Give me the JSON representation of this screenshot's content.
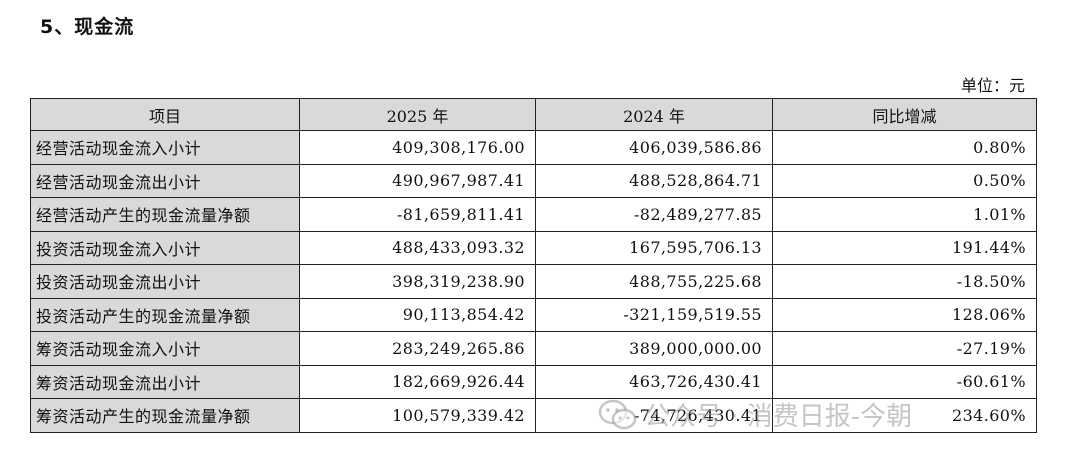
{
  "section_title": "5、现金流",
  "unit_note": "单位：元",
  "table": {
    "headers": [
      "项目",
      "2025 年",
      "2024 年",
      "同比增减"
    ],
    "rows": [
      {
        "item": "经营活动现金流入小计",
        "y2025": "409,308,176.00",
        "y2024": "406,039,586.86",
        "yoy": "0.80%"
      },
      {
        "item": "经营活动现金流出小计",
        "y2025": "490,967,987.41",
        "y2024": "488,528,864.71",
        "yoy": "0.50%"
      },
      {
        "item": "经营活动产生的现金流量净额",
        "y2025": "-81,659,811.41",
        "y2024": "-82,489,277.85",
        "yoy": "1.01%"
      },
      {
        "item": "投资活动现金流入小计",
        "y2025": "488,433,093.32",
        "y2024": "167,595,706.13",
        "yoy": "191.44%"
      },
      {
        "item": "投资活动现金流出小计",
        "y2025": "398,319,238.90",
        "y2024": "488,755,225.68",
        "yoy": "-18.50%"
      },
      {
        "item": "投资活动产生的现金流量净额",
        "y2025": "90,113,854.42",
        "y2024": "-321,159,519.55",
        "yoy": "128.06%"
      },
      {
        "item": "筹资活动现金流入小计",
        "y2025": "283,249,265.86",
        "y2024": "389,000,000.00",
        "yoy": "-27.19%"
      },
      {
        "item": "筹资活动现金流出小计",
        "y2025": "182,669,926.44",
        "y2024": "463,726,430.41",
        "yoy": "-60.61%"
      },
      {
        "item": "筹资活动产生的现金流量净额",
        "y2025": "100,579,339.42",
        "y2024": "-74,726,430.41",
        "yoy": "234.60%"
      }
    ]
  },
  "watermark": {
    "icon": "wechat-icon",
    "text": "公众号 · 消费日报-今朝"
  }
}
